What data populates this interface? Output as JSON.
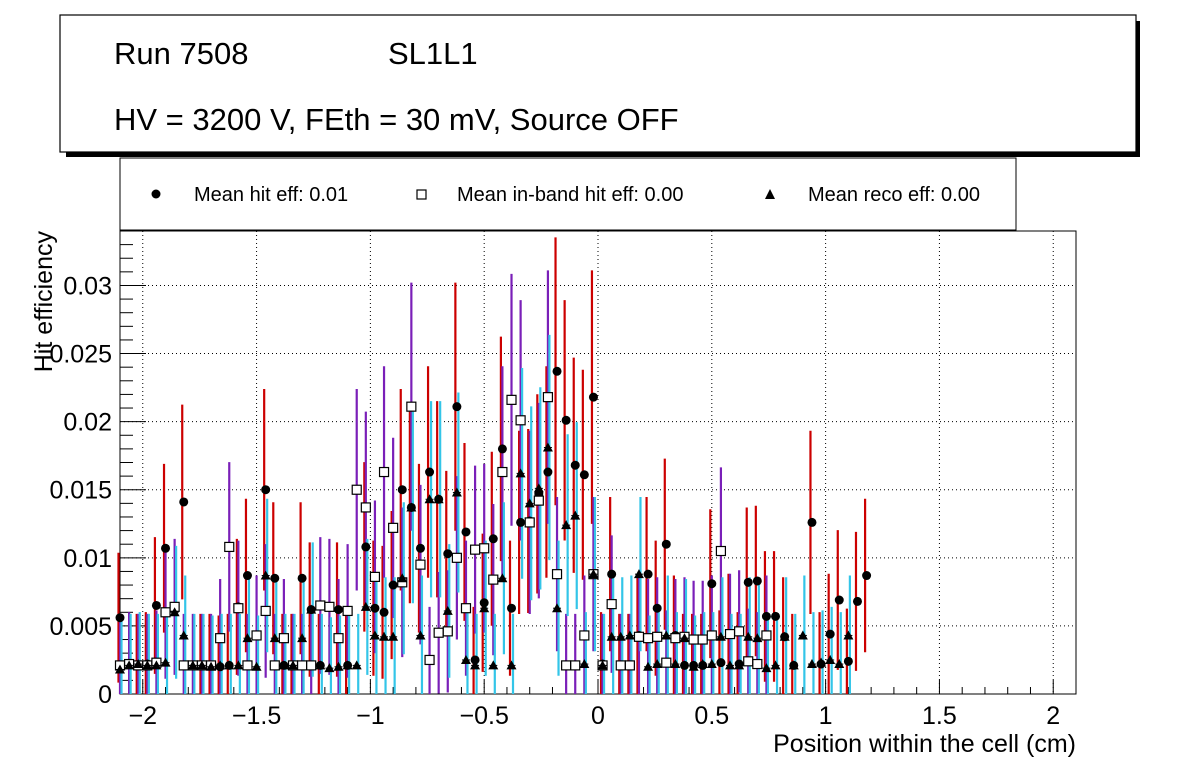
{
  "header": {
    "run": "Run 7508",
    "layer": "SL1L1",
    "conditions": "HV = 3200 V, FEth = 30 mV, Source OFF"
  },
  "legend": {
    "hit": "Mean hit  eff: 0.01",
    "inband": "Mean in-band hit eff: 0.00",
    "reco": "Mean reco eff: 0.00"
  },
  "colors": {
    "hit_error": "#cc0000",
    "inband_error": "#7a1fb8",
    "reco_error": "#33c5e8"
  },
  "chart_data": {
    "type": "scatter",
    "title": "",
    "xlabel": "Position within the cell (cm)",
    "ylabel": "Hit efficiency",
    "xlim": [
      -2.1,
      2.1
    ],
    "ylim": [
      0,
      0.034
    ],
    "xticks": [
      -2,
      -1.5,
      -1,
      -0.5,
      0,
      0.5,
      1,
      1.5,
      2
    ],
    "xtick_labels": [
      "−2",
      "−1.5",
      "−1",
      "−0.5",
      "0",
      "0.5",
      "1",
      "1.5",
      "2"
    ],
    "yticks": [
      0,
      0.005,
      0.01,
      0.015,
      0.02,
      0.025,
      0.03
    ],
    "ytick_labels": [
      "0",
      "0.005",
      "0.01",
      "0.015",
      "0.02",
      "0.025",
      "0.03"
    ],
    "grid": true,
    "x": [
      -2.1,
      -2.06,
      -2.02,
      -1.98,
      -1.94,
      -1.9,
      -1.86,
      -1.82,
      -1.78,
      -1.74,
      -1.7,
      -1.66,
      -1.62,
      -1.58,
      -1.54,
      -1.5,
      -1.46,
      -1.42,
      -1.38,
      -1.34,
      -1.3,
      -1.26,
      -1.22,
      -1.18,
      -1.14,
      -1.1,
      -1.06,
      -1.02,
      -0.98,
      -0.94,
      -0.9,
      -0.86,
      -0.82,
      -0.78,
      -0.74,
      -0.7,
      -0.66,
      -0.62,
      -0.58,
      -0.54,
      -0.5,
      -0.46,
      -0.42,
      -0.38,
      -0.34,
      -0.3,
      -0.26,
      -0.22,
      -0.18,
      -0.14,
      -0.1,
      -0.06,
      -0.02,
      0.02,
      0.06,
      0.1,
      0.14,
      0.18,
      0.22,
      0.26,
      0.3,
      0.34,
      0.38,
      0.42,
      0.46,
      0.5,
      0.54,
      0.58,
      0.62,
      0.66,
      0.7,
      0.74,
      0.78,
      0.82,
      0.86,
      0.9,
      0.94,
      0.98,
      1.02,
      1.06,
      1.1,
      1.14,
      1.18,
      1.22,
      1.26,
      1.3,
      1.34,
      1.38,
      1.42,
      1.46,
      1.5,
      1.54,
      1.58,
      1.62,
      1.66,
      1.7,
      1.74,
      1.78,
      1.82,
      1.86,
      1.9,
      1.94,
      1.98,
      2.02,
      2.06
    ],
    "series": [
      {
        "name": "Mean hit  eff: 0.01",
        "marker": "circle",
        "values": [
          0.0056,
          null,
          0.0021,
          0.0022,
          0.0065,
          0.0107,
          null,
          0.0141,
          null,
          0.0021,
          0.0021,
          0.002,
          0.0021,
          0.0064,
          0.0087,
          null,
          0.015,
          0.0085,
          0.0021,
          0.0021,
          0.0085,
          0.0062,
          0.0021,
          null,
          0.0062,
          0.0021,
          null,
          0.0108,
          0.0063,
          0.006,
          0.008,
          0.015,
          0.0137,
          0.0107,
          0.0163,
          0.0143,
          0.0103,
          0.0211,
          0.0119,
          0.0025,
          0.0067,
          0.0114,
          0.018,
          0.0063,
          0.0126,
          0.0127,
          0.0147,
          0.0163,
          0.0237,
          0.0201,
          0.0168,
          0.0161,
          0.0218,
          0.0022,
          0.0088,
          0.0021,
          0.0021,
          0.0043,
          0.0088,
          0.0063,
          0.011,
          0.0043,
          0.0021,
          0.0021,
          0.0021,
          0.0081,
          0.0023,
          0.0044,
          0.0022,
          0.0082,
          0.0083,
          0.0057,
          0.0057,
          0.0042,
          0.0021,
          null,
          0.0126,
          0.0022,
          0.0044,
          0.0069,
          0.0024,
          0.0068,
          0.0087
        ]
      },
      {
        "name": "Mean in-band hit eff: 0.00",
        "marker": "open-square",
        "values": [
          0.0021,
          0.0022,
          0.0021,
          0.0021,
          0.0023,
          0.006,
          0.0064,
          0.0021,
          0.0021,
          0.0021,
          0.0021,
          0.0041,
          0.0108,
          0.0063,
          0.0021,
          0.0043,
          0.0061,
          0.0021,
          0.0041,
          0.0021,
          0.0021,
          0.0021,
          0.0065,
          0.0064,
          0.0041,
          0.0061,
          0.015,
          0.0137,
          0.0086,
          0.0163,
          0.0122,
          0.0082,
          0.0211,
          0.0095,
          0.0025,
          0.0045,
          0.0046,
          0.01,
          0.0063,
          0.0106,
          0.0107,
          0.0084,
          0.0163,
          0.0216,
          0.0201,
          0.0126,
          0.0142,
          0.0218,
          0.0088,
          0.0021,
          0.0021,
          0.0043,
          0.0088,
          0.0021,
          0.0066,
          0.0021,
          0.0021,
          0.0042,
          0.0041,
          0.0042,
          0.0023,
          0.0041,
          0.0042,
          0.004,
          0.004,
          0.0043,
          0.0105,
          0.0044,
          0.0046,
          0.0024,
          0.0022,
          0.0043
        ]
      },
      {
        "name": "Mean reco eff: 0.00",
        "marker": "triangle",
        "values": [
          0.0018,
          0.0021,
          0.0022,
          0.0021,
          0.0021,
          0.0023,
          0.006,
          0.0043,
          0.0021,
          0.0021,
          0.002,
          0.0021,
          0.0021,
          0.0021,
          0.0041,
          0.002,
          0.0087,
          0.0041,
          0.0021,
          0.0021,
          0.0041,
          0.0062,
          0.0021,
          0.0019,
          0.002,
          0.0021,
          0.0021,
          0.0064,
          0.0043,
          0.0042,
          0.0042,
          0.0085,
          0.0137,
          0.0043,
          0.0143,
          0.0143,
          0.0061,
          0.0148,
          0.0025,
          0.0021,
          0.0063,
          0.0021,
          0.0085,
          0.0021,
          0.0162,
          0.014,
          0.0151,
          0.0181,
          0.0063,
          0.0124,
          0.0131,
          0.0022,
          0.0088,
          0.0021,
          0.0042,
          0.0042,
          0.0043,
          0.0088,
          0.002,
          0.0022,
          0.0043,
          0.0022,
          0.0041,
          0.002,
          0.0022,
          0.0022,
          0.0042,
          0.0021,
          0.0021,
          0.0042,
          0.0041,
          0.0019,
          0.0021,
          0.0042,
          0.0021,
          0.0043,
          0.0022,
          0.0023,
          0.0025,
          0.0022,
          0.0043
        ]
      }
    ]
  }
}
